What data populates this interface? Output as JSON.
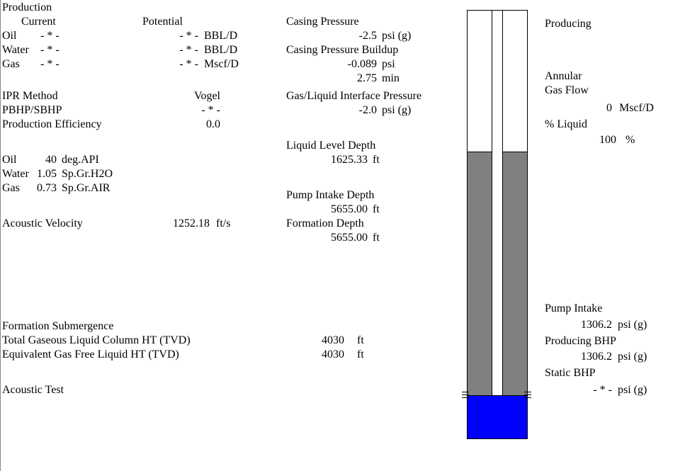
{
  "production": {
    "title": "Production",
    "current_label": "Current",
    "potential_label": "Potential",
    "rows": [
      {
        "name": "Oil",
        "current": "- * -",
        "potential": "- * -",
        "unit": "BBL/D"
      },
      {
        "name": "Water",
        "current": "- * -",
        "potential": "- * -",
        "unit": "BBL/D"
      },
      {
        "name": "Gas",
        "current": "- * -",
        "potential": "- * -",
        "unit": "Mscf/D"
      }
    ]
  },
  "ipr": {
    "method_label": "IPR Method",
    "method_value": "Vogel",
    "pbhp_label": "PBHP/SBHP",
    "pbhp_value": "- * -",
    "efficiency_label": "Production Efficiency",
    "efficiency_value": "0.0"
  },
  "fluids": [
    {
      "name": "Oil",
      "value": "40",
      "unit": "deg.API"
    },
    {
      "name": "Water",
      "value": "1.05",
      "unit": "Sp.Gr.H2O"
    },
    {
      "name": "Gas",
      "value": "0.73",
      "unit": "Sp.Gr.AIR"
    }
  ],
  "acoustic_velocity": {
    "label": "Acoustic Velocity",
    "value": "1252.18",
    "unit": "ft/s"
  },
  "submergence": {
    "title": "Formation Submergence",
    "total_label": "Total Gaseous Liquid Column HT (TVD)",
    "total_value": "4030",
    "total_unit": "ft",
    "equiv_label": "Equivalent Gas Free Liquid HT (TVD)",
    "equiv_value": "4030",
    "equiv_unit": "ft"
  },
  "acoustic_test": "Acoustic Test",
  "pressures": {
    "casing_label": "Casing Pressure",
    "casing_value": "-2.5",
    "casing_unit": "psi (g)",
    "buildup_label": "Casing Pressure Buildup",
    "buildup_value": "-0.089",
    "buildup_unit": "psi",
    "buildup_time": "2.75",
    "buildup_time_unit": "min",
    "interface_label": "Gas/Liquid Interface Pressure",
    "interface_value": "-2.0",
    "interface_unit": "psi (g)",
    "liquid_level_label": "Liquid Level Depth",
    "liquid_level_value": "1625.33",
    "liquid_level_unit": "ft",
    "pump_depth_label": "Pump Intake Depth",
    "pump_depth_value": "5655.00",
    "pump_depth_unit": "ft",
    "formation_depth_label": "Formation Depth",
    "formation_depth_value": "5655.00",
    "formation_depth_unit": "ft"
  },
  "right_panel": {
    "status": "Producing",
    "annular_label": "Annular",
    "gas_flow_label": "Gas Flow",
    "gas_flow_value": "0",
    "gas_flow_unit": "Mscf/D",
    "liquid_label": "% Liquid",
    "liquid_value": "100",
    "liquid_unit": "%",
    "pump_intake_label": "Pump Intake",
    "pump_intake_value": "1306.2",
    "pump_intake_unit": "psi (g)",
    "producing_bhp_label": "Producing BHP",
    "producing_bhp_value": "1306.2",
    "producing_bhp_unit": "psi (g)",
    "static_bhp_label": "Static BHP",
    "static_bhp_value": "- * -",
    "static_bhp_unit": "psi (g)"
  },
  "wellbore": {
    "liquid_level_fraction": 0.367,
    "colors": {
      "gas": "#ffffff",
      "liquid": "#808080",
      "formation": "#0000ff",
      "outline": "#000000"
    }
  }
}
